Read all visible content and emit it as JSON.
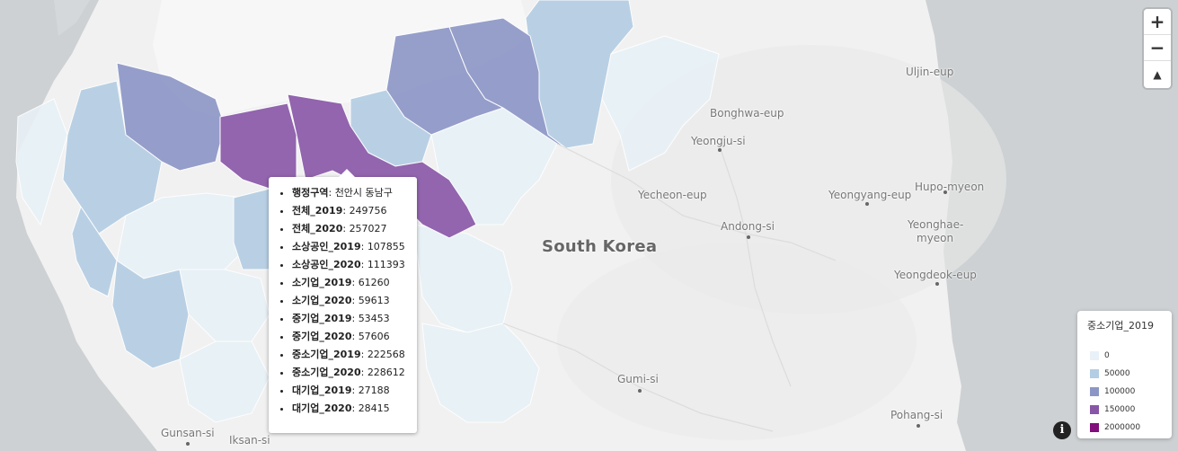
{
  "map": {
    "colors": {
      "sea": "#cdd1d3",
      "land": "#f1f1f1",
      "border": "#ffffff"
    },
    "places": [
      {
        "id": "south-korea",
        "label": "South Korea",
        "big": true
      },
      {
        "id": "uljin",
        "label": "Uljin-eup"
      },
      {
        "id": "bonghwa",
        "label": "Bonghwa-eup"
      },
      {
        "id": "yeongju",
        "label": "Yeongju-si"
      },
      {
        "id": "yecheon",
        "label": "Yecheon-eup"
      },
      {
        "id": "yeongyang",
        "label": "Yeongyang-eup"
      },
      {
        "id": "hupo",
        "label": "Hupo-myeon"
      },
      {
        "id": "andong",
        "label": "Andong-si"
      },
      {
        "id": "yeonghae1",
        "label": "Yeonghae-"
      },
      {
        "id": "yeonghae2",
        "label": "myeon"
      },
      {
        "id": "yeongdeok",
        "label": "Yeongdeok-eup"
      },
      {
        "id": "gumi",
        "label": "Gumi-si"
      },
      {
        "id": "pohang",
        "label": "Pohang-si"
      },
      {
        "id": "gunsan",
        "label": "Gunsan-si"
      },
      {
        "id": "iksan",
        "label": "Iksan-si"
      }
    ]
  },
  "controls": {
    "zoom_in": "+",
    "zoom_out": "−",
    "reset_north": "▲"
  },
  "tooltip": {
    "rows": [
      {
        "key": "행정구역",
        "value": "천안시 동남구"
      },
      {
        "key": "전체_2019",
        "value": "249756"
      },
      {
        "key": "전체_2020",
        "value": "257027"
      },
      {
        "key": "소상공인_2019",
        "value": "107855"
      },
      {
        "key": "소상공인_2020",
        "value": "111393"
      },
      {
        "key": "소기업_2019",
        "value": "61260"
      },
      {
        "key": "소기업_2020",
        "value": "59613"
      },
      {
        "key": "중기업_2019",
        "value": "53453"
      },
      {
        "key": "중기업_2020",
        "value": "57606"
      },
      {
        "key": "중소기업_2019",
        "value": "222568"
      },
      {
        "key": "중소기업_2020",
        "value": "228612"
      },
      {
        "key": "대기업_2019",
        "value": "27188"
      },
      {
        "key": "대기업_2020",
        "value": "28415"
      }
    ]
  },
  "legend": {
    "title": "중소기업_2019",
    "items": [
      {
        "label": "0",
        "color": "#e8f1f7"
      },
      {
        "label": "50000",
        "color": "#b3cde3"
      },
      {
        "label": "100000",
        "color": "#8c96c6"
      },
      {
        "label": "150000",
        "color": "#8856a7"
      },
      {
        "label": "2000000",
        "color": "#810f7c"
      }
    ]
  },
  "info_icon": "i"
}
